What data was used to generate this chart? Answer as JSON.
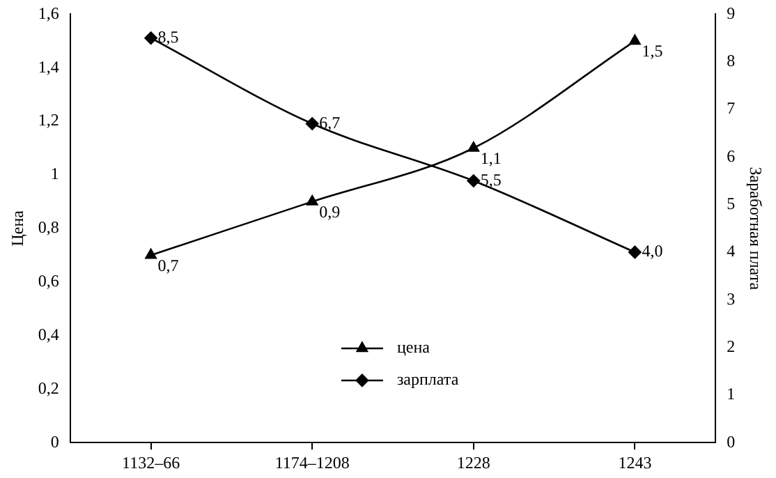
{
  "chart_data": {
    "type": "line",
    "ylabel": "Цена",
    "y2label": "Заработная плата",
    "categories": [
      "1132–66",
      "1174–1208",
      "1228",
      "1243"
    ],
    "series": [
      {
        "name": "цена",
        "color": "#000000",
        "marker": "triangle",
        "values": [
          0.7,
          0.9,
          1.1,
          1.5
        ],
        "value_labels": [
          "0,7",
          "0,9",
          "1,1",
          "1,5"
        ]
      },
      {
        "name": "зарплата",
        "color": "#000000",
        "marker": "diamond",
        "axis": "y2",
        "values": [
          8.5,
          6.7,
          5.5,
          4.0
        ],
        "value_labels": [
          "8,5",
          "6,7",
          "5,5",
          "4,0"
        ]
      }
    ],
    "ylim": [
      0,
      1.6
    ],
    "yticks": [
      0,
      {
        "value": 0.2,
        "label": "0,2"
      },
      {
        "value": 0.4,
        "label": "0,4"
      },
      {
        "value": 0.6,
        "label": "0,6"
      },
      {
        "value": 0.8,
        "label": "0,8"
      },
      1,
      {
        "value": 1.2,
        "label": "1,2"
      },
      {
        "value": 1.4,
        "label": "1,4"
      },
      {
        "value": 1.6,
        "label": "1,6"
      }
    ],
    "y2lim": [
      0,
      9
    ],
    "y2ticks": [
      0,
      1,
      2,
      3,
      4,
      5,
      6,
      7,
      8,
      9
    ],
    "grid": false,
    "legend": "bottom",
    "line_style": "solid"
  }
}
